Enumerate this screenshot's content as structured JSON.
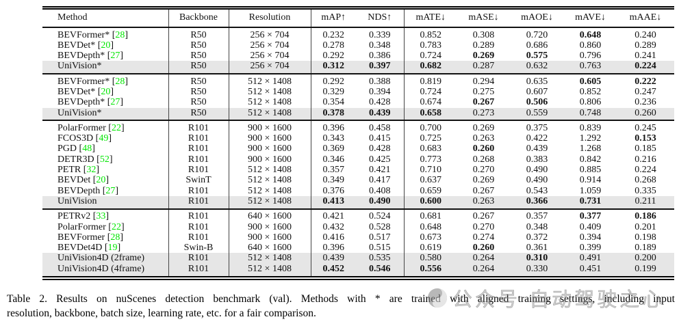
{
  "table": {
    "columns": [
      "Method",
      "Backbone",
      "Resolution",
      "mAP↑",
      "NDS↑",
      "mATE↓",
      "mASE↓",
      "mAOE↓",
      "mAVE↓",
      "mAAE↓"
    ],
    "highlight_color": "#e6e6e6",
    "citation_color": "#00e600",
    "groups": [
      {
        "rows": [
          {
            "method": "BEVFormer*",
            "cite": "28",
            "backbone": "R50",
            "resolution": "256 × 704",
            "values": [
              "0.232",
              "0.339",
              "0.852",
              "0.308",
              "0.720",
              "0.648",
              "0.240"
            ],
            "bold": [
              5
            ],
            "highlight": false
          },
          {
            "method": "BEVDet*",
            "cite": "20",
            "backbone": "R50",
            "resolution": "256 × 704",
            "values": [
              "0.278",
              "0.348",
              "0.783",
              "0.289",
              "0.686",
              "0.860",
              "0.289"
            ],
            "bold": [],
            "highlight": false
          },
          {
            "method": "BEVDepth*",
            "cite": "27",
            "backbone": "R50",
            "resolution": "256 × 704",
            "values": [
              "0.292",
              "0.386",
              "0.724",
              "0.269",
              "0.575",
              "0.796",
              "0.241"
            ],
            "bold": [
              3,
              4
            ],
            "highlight": false
          },
          {
            "method": "UniVision*",
            "cite": null,
            "backbone": "R50",
            "resolution": "256 × 704",
            "values": [
              "0.312",
              "0.397",
              "0.682",
              "0.287",
              "0.632",
              "0.763",
              "0.224"
            ],
            "bold": [
              0,
              1,
              2,
              6
            ],
            "highlight": true
          }
        ]
      },
      {
        "rows": [
          {
            "method": "BEVFormer*",
            "cite": "28",
            "backbone": "R50",
            "resolution": "512 × 1408",
            "values": [
              "0.292",
              "0.388",
              "0.819",
              "0.294",
              "0.635",
              "0.605",
              "0.222"
            ],
            "bold": [
              5,
              6
            ],
            "highlight": false
          },
          {
            "method": "BEVDet*",
            "cite": "20",
            "backbone": "R50",
            "resolution": "512 × 1408",
            "values": [
              "0.329",
              "0.394",
              "0.724",
              "0.275",
              "0.607",
              "0.852",
              "0.247"
            ],
            "bold": [],
            "highlight": false
          },
          {
            "method": "BEVDepth*",
            "cite": "27",
            "backbone": "R50",
            "resolution": "512 × 1408",
            "values": [
              "0.354",
              "0.428",
              "0.674",
              "0.267",
              "0.506",
              "0.806",
              "0.236"
            ],
            "bold": [
              3,
              4
            ],
            "highlight": false
          },
          {
            "method": "UniVision*",
            "cite": null,
            "backbone": "R50",
            "resolution": "512 × 1408",
            "values": [
              "0.378",
              "0.439",
              "0.658",
              "0.273",
              "0.559",
              "0.748",
              "0.260"
            ],
            "bold": [
              0,
              1,
              2
            ],
            "highlight": true
          }
        ]
      },
      {
        "rows": [
          {
            "method": "PolarFormer",
            "cite": "22",
            "backbone": "R101",
            "resolution": "900 × 1600",
            "values": [
              "0.396",
              "0.458",
              "0.700",
              "0.269",
              "0.375",
              "0.839",
              "0.245"
            ],
            "bold": [],
            "highlight": false
          },
          {
            "method": "FCOS3D",
            "cite": "49",
            "backbone": "R101",
            "resolution": "900 × 1600",
            "values": [
              "0.343",
              "0.415",
              "0.725",
              "0.263",
              "0.422",
              "1.292",
              "0.153"
            ],
            "bold": [
              6
            ],
            "highlight": false
          },
          {
            "method": "PGD",
            "cite": "48",
            "backbone": "R101",
            "resolution": "900 × 1600",
            "values": [
              "0.369",
              "0.428",
              "0.683",
              "0.260",
              "0.439",
              "1.268",
              "0.185"
            ],
            "bold": [
              3
            ],
            "highlight": false
          },
          {
            "method": "DETR3D",
            "cite": "52",
            "backbone": "R101",
            "resolution": "900 × 1600",
            "values": [
              "0.346",
              "0.425",
              "0.773",
              "0.268",
              "0.383",
              "0.842",
              "0.216"
            ],
            "bold": [],
            "highlight": false
          },
          {
            "method": "PETR",
            "cite": "32",
            "backbone": "R101",
            "resolution": "512 × 1408",
            "values": [
              "0.357",
              "0.421",
              "0.710",
              "0.270",
              "0.490",
              "0.885",
              "0.224"
            ],
            "bold": [],
            "highlight": false
          },
          {
            "method": "BEVDet",
            "cite": "20",
            "backbone": "SwinT",
            "resolution": "512 × 1408",
            "values": [
              "0.349",
              "0.417",
              "0.637",
              "0.269",
              "0.490",
              "0.914",
              "0.268"
            ],
            "bold": [],
            "highlight": false
          },
          {
            "method": "BEVDepth",
            "cite": "27",
            "backbone": "R101",
            "resolution": "512 × 1408",
            "values": [
              "0.376",
              "0.408",
              "0.659",
              "0.267",
              "0.543",
              "1.059",
              "0.335"
            ],
            "bold": [],
            "highlight": false
          },
          {
            "method": "UniVision",
            "cite": null,
            "backbone": "R101",
            "resolution": "512 × 1408",
            "values": [
              "0.413",
              "0.490",
              "0.600",
              "0.263",
              "0.366",
              "0.731",
              "0.211"
            ],
            "bold": [
              0,
              1,
              2,
              4,
              5
            ],
            "highlight": true
          }
        ]
      },
      {
        "rows": [
          {
            "method": "PETRv2",
            "cite": "33",
            "backbone": "R101",
            "resolution": "640 × 1600",
            "values": [
              "0.421",
              "0.524",
              "0.681",
              "0.267",
              "0.357",
              "0.377",
              "0.186"
            ],
            "bold": [
              5,
              6
            ],
            "highlight": false
          },
          {
            "method": "PolarFormer",
            "cite": "22",
            "backbone": "R101",
            "resolution": "900 × 1600",
            "values": [
              "0.432",
              "0.528",
              "0.648",
              "0.270",
              "0.348",
              "0.409",
              "0.201"
            ],
            "bold": [],
            "highlight": false
          },
          {
            "method": "BEVFormer",
            "cite": "28",
            "backbone": "R101",
            "resolution": "900 × 1600",
            "values": [
              "0.416",
              "0.517",
              "0.673",
              "0.274",
              "0.372",
              "0.394",
              "0.198"
            ],
            "bold": [],
            "highlight": false
          },
          {
            "method": "BEVDet4D",
            "cite": "19",
            "backbone": "Swin-B",
            "resolution": "640 × 1600",
            "values": [
              "0.396",
              "0.515",
              "0.619",
              "0.260",
              "0.361",
              "0.399",
              "0.189"
            ],
            "bold": [
              3
            ],
            "highlight": false
          },
          {
            "method": "UniVision4D (2frame)",
            "cite": null,
            "backbone": "R101",
            "resolution": "512 × 1408",
            "values": [
              "0.439",
              "0.535",
              "0.580",
              "0.264",
              "0.310",
              "0.491",
              "0.200"
            ],
            "bold": [
              4
            ],
            "highlight": true
          },
          {
            "method": "UniVision4D (4frame)",
            "cite": null,
            "backbone": "R101",
            "resolution": "512 × 1408",
            "values": [
              "0.452",
              "0.546",
              "0.556",
              "0.264",
              "0.330",
              "0.451",
              "0.199"
            ],
            "bold": [
              0,
              1,
              2
            ],
            "highlight": true
          }
        ]
      }
    ]
  },
  "caption": {
    "line1": "Table 2.  Results on nuScenes detection benchmark (val).  Methods with * are trained with aligned training settings, including input",
    "line2": "resolution, backbone, batch size, learning rate, etc. for a fair comparison."
  },
  "watermark": {
    "icon": "logo-circle",
    "text": "公众号 自动驾驶之心"
  }
}
